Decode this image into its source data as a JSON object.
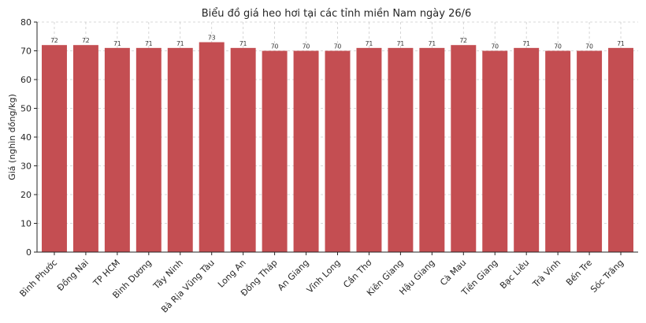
{
  "chart_data": {
    "type": "bar",
    "title": "Biểu đồ giá heo hơi tại các tỉnh miền Nam ngày 26/6",
    "xlabel": "",
    "ylabel": "Giá (nghìn đồng/kg)",
    "ylim": [
      0,
      80
    ],
    "yticks": [
      0,
      10,
      20,
      30,
      40,
      50,
      60,
      70,
      80
    ],
    "grid": true,
    "bar_color": "#c44e52",
    "categories": [
      "Bình Phước",
      "Đồng Nai",
      "TP HCM",
      "Bình Dương",
      "Tây Ninh",
      "Bà Rịa  Vũng Tàu",
      "Long An",
      "Đồng Tháp",
      "An Giang",
      "Vĩnh Long",
      "Cần Thơ",
      "Kiên Giang",
      "Hậu Giang",
      "Cà Mau",
      "Tiền Giang",
      "Bạc Liêu",
      "Trà Vinh",
      "Bến Tre",
      "Sóc Trăng"
    ],
    "values": [
      72,
      72,
      71,
      71,
      71,
      73,
      71,
      70,
      70,
      70,
      71,
      71,
      71,
      72,
      70,
      71,
      70,
      70,
      71
    ]
  }
}
